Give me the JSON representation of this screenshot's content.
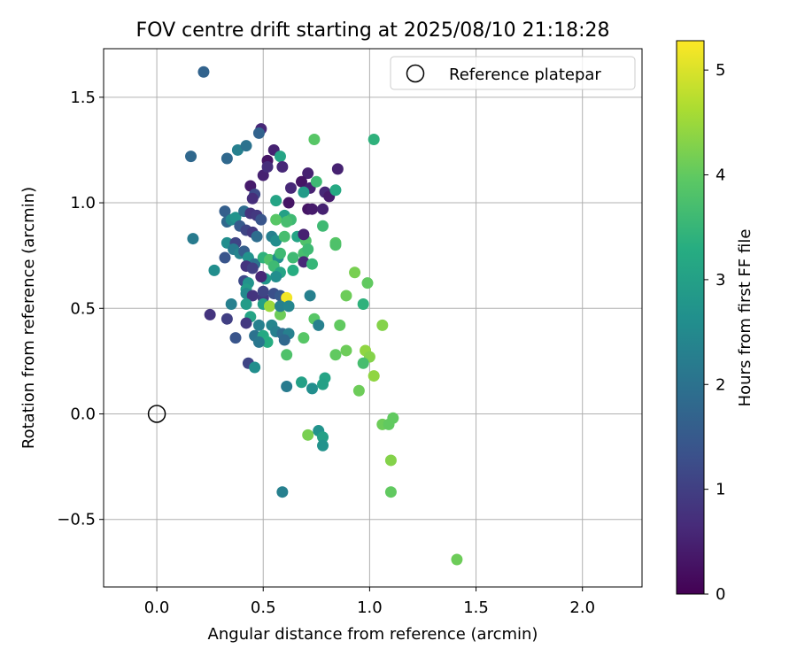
{
  "chart_data": {
    "type": "scatter",
    "title": "FOV centre drift starting at 2025/08/10 21:18:28",
    "xlabel": "Angular distance from reference (arcmin)",
    "ylabel": "Rotation from reference (arcmin)",
    "xlim": [
      -0.25,
      2.28
    ],
    "ylim": [
      -0.82,
      1.73
    ],
    "xticks": [
      0.0,
      0.5,
      1.0,
      1.5,
      2.0
    ],
    "xtick_labels": [
      "0.0",
      "0.5",
      "1.0",
      "1.5",
      "2.0"
    ],
    "yticks": [
      -0.5,
      0.0,
      0.5,
      1.0,
      1.5
    ],
    "ytick_labels": [
      "−0.5",
      "0.0",
      "0.5",
      "1.0",
      "1.5"
    ],
    "grid": true,
    "legend": {
      "placement": "top-right",
      "entries": [
        "Reference platepar"
      ]
    },
    "colorbar": {
      "label": "Hours from first FF file",
      "range": [
        0,
        5.28
      ],
      "ticks": [
        0,
        1,
        2,
        3,
        4,
        5
      ],
      "tick_labels": [
        "0",
        "1",
        "2",
        "3",
        "4",
        "5"
      ],
      "colormap": "viridis"
    },
    "reference_point": {
      "name": "Reference platepar",
      "x": 0.0,
      "y": 0.0
    },
    "points": [
      {
        "x": 0.22,
        "y": 1.62,
        "c": 1.7
      },
      {
        "x": 0.16,
        "y": 1.22,
        "c": 1.8
      },
      {
        "x": 0.17,
        "y": 0.83,
        "c": 2.2
      },
      {
        "x": 0.27,
        "y": 0.68,
        "c": 2.6
      },
      {
        "x": 0.25,
        "y": 0.47,
        "c": 0.8
      },
      {
        "x": 0.32,
        "y": 0.96,
        "c": 1.6
      },
      {
        "x": 0.33,
        "y": 1.21,
        "c": 1.8
      },
      {
        "x": 0.38,
        "y": 1.25,
        "c": 2.3
      },
      {
        "x": 0.42,
        "y": 1.27,
        "c": 2.0
      },
      {
        "x": 0.49,
        "y": 1.35,
        "c": 0.6
      },
      {
        "x": 0.48,
        "y": 1.33,
        "c": 1.7
      },
      {
        "x": 0.55,
        "y": 1.25,
        "c": 0.5
      },
      {
        "x": 0.58,
        "y": 1.22,
        "c": 3.1
      },
      {
        "x": 0.59,
        "y": 1.17,
        "c": 0.6
      },
      {
        "x": 0.52,
        "y": 1.2,
        "c": 0.3
      },
      {
        "x": 0.5,
        "y": 1.13,
        "c": 0.5
      },
      {
        "x": 0.44,
        "y": 1.08,
        "c": 0.4
      },
      {
        "x": 0.46,
        "y": 1.04,
        "c": 1.2
      },
      {
        "x": 0.45,
        "y": 1.02,
        "c": 0.7
      },
      {
        "x": 0.52,
        "y": 1.17,
        "c": 0.7
      },
      {
        "x": 0.63,
        "y": 1.07,
        "c": 0.6
      },
      {
        "x": 0.62,
        "y": 1.0,
        "c": 0.3
      },
      {
        "x": 0.71,
        "y": 1.14,
        "c": 0.5
      },
      {
        "x": 0.68,
        "y": 1.1,
        "c": 0.3
      },
      {
        "x": 0.72,
        "y": 1.07,
        "c": 0.5
      },
      {
        "x": 0.69,
        "y": 1.05,
        "c": 2.9
      },
      {
        "x": 0.75,
        "y": 1.1,
        "c": 3.6
      },
      {
        "x": 0.79,
        "y": 1.05,
        "c": 0.6
      },
      {
        "x": 0.81,
        "y": 1.03,
        "c": 0.4
      },
      {
        "x": 0.84,
        "y": 1.06,
        "c": 3.2
      },
      {
        "x": 0.85,
        "y": 1.16,
        "c": 0.5
      },
      {
        "x": 0.74,
        "y": 1.3,
        "c": 3.9
      },
      {
        "x": 1.02,
        "y": 1.3,
        "c": 3.4
      },
      {
        "x": 0.56,
        "y": 1.01,
        "c": 3.1
      },
      {
        "x": 0.71,
        "y": 0.97,
        "c": 0.3
      },
      {
        "x": 0.73,
        "y": 0.97,
        "c": 0.4
      },
      {
        "x": 0.78,
        "y": 0.97,
        "c": 0.5
      },
      {
        "x": 0.6,
        "y": 0.94,
        "c": 3.0
      },
      {
        "x": 0.63,
        "y": 0.92,
        "c": 3.6
      },
      {
        "x": 0.56,
        "y": 0.92,
        "c": 3.9
      },
      {
        "x": 0.61,
        "y": 0.91,
        "c": 3.7
      },
      {
        "x": 0.78,
        "y": 0.89,
        "c": 3.6
      },
      {
        "x": 0.33,
        "y": 0.91,
        "c": 1.8
      },
      {
        "x": 0.35,
        "y": 0.92,
        "c": 2.5
      },
      {
        "x": 0.37,
        "y": 0.93,
        "c": 2.7
      },
      {
        "x": 0.41,
        "y": 0.96,
        "c": 1.9
      },
      {
        "x": 0.44,
        "y": 0.95,
        "c": 0.8
      },
      {
        "x": 0.47,
        "y": 0.94,
        "c": 0.9
      },
      {
        "x": 0.49,
        "y": 0.92,
        "c": 1.4
      },
      {
        "x": 0.39,
        "y": 0.89,
        "c": 1.5
      },
      {
        "x": 0.42,
        "y": 0.87,
        "c": 1.1
      },
      {
        "x": 0.45,
        "y": 0.86,
        "c": 0.9
      },
      {
        "x": 0.47,
        "y": 0.84,
        "c": 1.9
      },
      {
        "x": 0.54,
        "y": 0.84,
        "c": 2.3
      },
      {
        "x": 0.56,
        "y": 0.82,
        "c": 2.6
      },
      {
        "x": 0.6,
        "y": 0.84,
        "c": 3.7
      },
      {
        "x": 0.66,
        "y": 0.84,
        "c": 3.1
      },
      {
        "x": 0.7,
        "y": 0.82,
        "c": 3.8
      },
      {
        "x": 0.69,
        "y": 0.85,
        "c": 0.5
      },
      {
        "x": 0.84,
        "y": 0.81,
        "c": 3.9
      },
      {
        "x": 0.84,
        "y": 0.8,
        "c": 3.8
      },
      {
        "x": 0.33,
        "y": 0.81,
        "c": 2.6
      },
      {
        "x": 0.37,
        "y": 0.81,
        "c": 1.1
      },
      {
        "x": 0.36,
        "y": 0.78,
        "c": 2.2
      },
      {
        "x": 0.39,
        "y": 0.76,
        "c": 2.4
      },
      {
        "x": 0.41,
        "y": 0.77,
        "c": 1.6
      },
      {
        "x": 0.43,
        "y": 0.74,
        "c": 2.7
      },
      {
        "x": 0.32,
        "y": 0.74,
        "c": 1.4
      },
      {
        "x": 0.46,
        "y": 0.71,
        "c": 2.0
      },
      {
        "x": 0.42,
        "y": 0.7,
        "c": 0.8
      },
      {
        "x": 0.45,
        "y": 0.69,
        "c": 1.0
      },
      {
        "x": 0.5,
        "y": 0.74,
        "c": 3.4
      },
      {
        "x": 0.53,
        "y": 0.73,
        "c": 3.8
      },
      {
        "x": 0.57,
        "y": 0.74,
        "c": 2.6
      },
      {
        "x": 0.58,
        "y": 0.76,
        "c": 3.6
      },
      {
        "x": 0.64,
        "y": 0.74,
        "c": 3.6
      },
      {
        "x": 0.69,
        "y": 0.76,
        "c": 3.7
      },
      {
        "x": 0.71,
        "y": 0.78,
        "c": 3.6
      },
      {
        "x": 0.69,
        "y": 0.72,
        "c": 0.6
      },
      {
        "x": 0.73,
        "y": 0.71,
        "c": 3.5
      },
      {
        "x": 0.55,
        "y": 0.7,
        "c": 3.6
      },
      {
        "x": 0.58,
        "y": 0.67,
        "c": 3.1
      },
      {
        "x": 0.64,
        "y": 0.68,
        "c": 3.3
      },
      {
        "x": 0.56,
        "y": 0.65,
        "c": 2.6
      },
      {
        "x": 0.51,
        "y": 0.64,
        "c": 2.8
      },
      {
        "x": 0.49,
        "y": 0.65,
        "c": 0.6
      },
      {
        "x": 0.41,
        "y": 0.63,
        "c": 1.2
      },
      {
        "x": 0.43,
        "y": 0.62,
        "c": 2.7
      },
      {
        "x": 0.42,
        "y": 0.59,
        "c": 2.9
      },
      {
        "x": 0.42,
        "y": 0.57,
        "c": 2.5
      },
      {
        "x": 0.45,
        "y": 0.56,
        "c": 0.8
      },
      {
        "x": 0.5,
        "y": 0.55,
        "c": 0.9
      },
      {
        "x": 0.5,
        "y": 0.58,
        "c": 1.1
      },
      {
        "x": 0.55,
        "y": 0.57,
        "c": 1.3
      },
      {
        "x": 0.58,
        "y": 0.56,
        "c": 1.5
      },
      {
        "x": 0.72,
        "y": 0.56,
        "c": 2.3
      },
      {
        "x": 0.61,
        "y": 0.55,
        "c": 5.2
      },
      {
        "x": 0.89,
        "y": 0.56,
        "c": 4.1
      },
      {
        "x": 0.93,
        "y": 0.67,
        "c": 4.2
      },
      {
        "x": 0.99,
        "y": 0.62,
        "c": 4.0
      },
      {
        "x": 0.97,
        "y": 0.52,
        "c": 3.4
      },
      {
        "x": 0.35,
        "y": 0.52,
        "c": 2.3
      },
      {
        "x": 0.42,
        "y": 0.52,
        "c": 2.9
      },
      {
        "x": 0.5,
        "y": 0.52,
        "c": 3.0
      },
      {
        "x": 0.53,
        "y": 0.51,
        "c": 4.5
      },
      {
        "x": 0.58,
        "y": 0.47,
        "c": 4.1
      },
      {
        "x": 0.58,
        "y": 0.51,
        "c": 2.3
      },
      {
        "x": 0.62,
        "y": 0.51,
        "c": 2.4
      },
      {
        "x": 0.33,
        "y": 0.45,
        "c": 1.0
      },
      {
        "x": 0.44,
        "y": 0.46,
        "c": 3.1
      },
      {
        "x": 0.42,
        "y": 0.43,
        "c": 0.9
      },
      {
        "x": 0.48,
        "y": 0.42,
        "c": 2.3
      },
      {
        "x": 0.54,
        "y": 0.42,
        "c": 2.4
      },
      {
        "x": 0.56,
        "y": 0.39,
        "c": 2.3
      },
      {
        "x": 0.59,
        "y": 0.38,
        "c": 1.9
      },
      {
        "x": 0.62,
        "y": 0.38,
        "c": 2.3
      },
      {
        "x": 0.6,
        "y": 0.35,
        "c": 1.8
      },
      {
        "x": 0.74,
        "y": 0.45,
        "c": 3.9
      },
      {
        "x": 0.76,
        "y": 0.42,
        "c": 2.3
      },
      {
        "x": 0.86,
        "y": 0.42,
        "c": 4.0
      },
      {
        "x": 1.06,
        "y": 0.42,
        "c": 4.3
      },
      {
        "x": 0.37,
        "y": 0.36,
        "c": 1.4
      },
      {
        "x": 0.46,
        "y": 0.37,
        "c": 2.0
      },
      {
        "x": 0.49,
        "y": 0.35,
        "c": 2.3
      },
      {
        "x": 0.5,
        "y": 0.37,
        "c": 3.2
      },
      {
        "x": 0.52,
        "y": 0.34,
        "c": 3.3
      },
      {
        "x": 0.48,
        "y": 0.34,
        "c": 2.1
      },
      {
        "x": 0.69,
        "y": 0.36,
        "c": 3.9
      },
      {
        "x": 0.61,
        "y": 0.28,
        "c": 3.8
      },
      {
        "x": 0.84,
        "y": 0.28,
        "c": 4.0
      },
      {
        "x": 0.89,
        "y": 0.3,
        "c": 4.1
      },
      {
        "x": 0.98,
        "y": 0.3,
        "c": 4.4
      },
      {
        "x": 1.0,
        "y": 0.27,
        "c": 4.3
      },
      {
        "x": 0.97,
        "y": 0.24,
        "c": 3.7
      },
      {
        "x": 0.43,
        "y": 0.24,
        "c": 1.1
      },
      {
        "x": 0.46,
        "y": 0.22,
        "c": 2.6
      },
      {
        "x": 1.02,
        "y": 0.18,
        "c": 4.4
      },
      {
        "x": 0.79,
        "y": 0.17,
        "c": 3.1
      },
      {
        "x": 0.68,
        "y": 0.15,
        "c": 3.0
      },
      {
        "x": 0.61,
        "y": 0.13,
        "c": 2.2
      },
      {
        "x": 0.73,
        "y": 0.12,
        "c": 2.6
      },
      {
        "x": 0.78,
        "y": 0.14,
        "c": 3.0
      },
      {
        "x": 0.95,
        "y": 0.11,
        "c": 4.1
      },
      {
        "x": 1.11,
        "y": -0.02,
        "c": 4.0
      },
      {
        "x": 1.06,
        "y": -0.05,
        "c": 4.1
      },
      {
        "x": 1.09,
        "y": -0.05,
        "c": 4.0
      },
      {
        "x": 0.71,
        "y": -0.1,
        "c": 4.2
      },
      {
        "x": 0.76,
        "y": -0.08,
        "c": 2.7
      },
      {
        "x": 0.78,
        "y": -0.11,
        "c": 3.0
      },
      {
        "x": 0.78,
        "y": -0.15,
        "c": 2.7
      },
      {
        "x": 1.1,
        "y": -0.22,
        "c": 4.3
      },
      {
        "x": 0.59,
        "y": -0.37,
        "c": 2.3
      },
      {
        "x": 1.1,
        "y": -0.37,
        "c": 4.0
      },
      {
        "x": 1.41,
        "y": -0.69,
        "c": 4.1
      }
    ]
  }
}
